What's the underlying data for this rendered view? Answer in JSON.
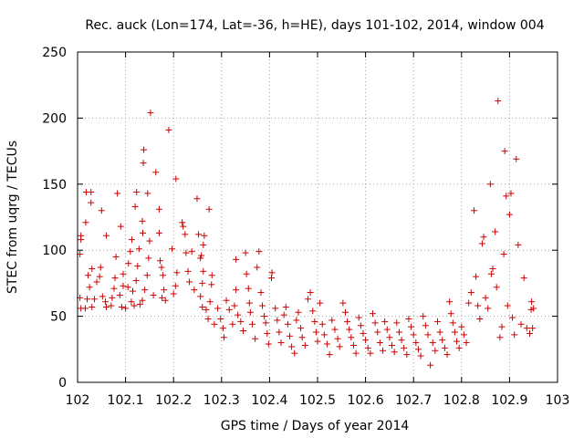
{
  "chart_data": {
    "type": "scatter",
    "title": "Rec. auck (Lon=174, Lat=-36, h=HE), days 101-102, 2014, window 004",
    "xlabel": "GPS time / Days of year 2014",
    "ylabel": "STEC from uqrg / TECUs",
    "xlim": [
      102,
      103
    ],
    "ylim": [
      0,
      250
    ],
    "x_ticks": [
      "102",
      "102.1",
      "102.2",
      "102.3",
      "102.4",
      "102.5",
      "102.6",
      "102.7",
      "102.8",
      "102.9",
      "103"
    ],
    "y_ticks": [
      "0",
      "50",
      "100",
      "150",
      "200",
      "250"
    ],
    "grid": true,
    "marker": "+",
    "color": "#cc0000",
    "points": [
      [
        102.007,
        56
      ],
      [
        102.005,
        64
      ],
      [
        102.005,
        97
      ],
      [
        102.007,
        108
      ],
      [
        102.007,
        111
      ],
      [
        102.017,
        121
      ],
      [
        102.018,
        144
      ],
      [
        102.028,
        144
      ],
      [
        102.028,
        136
      ],
      [
        102.03,
        86
      ],
      [
        102.022,
        81
      ],
      [
        102.025,
        72
      ],
      [
        102.02,
        63
      ],
      [
        102.016,
        56
      ],
      [
        102.03,
        57
      ],
      [
        102.035,
        63
      ],
      [
        102.04,
        76
      ],
      [
        102.046,
        80
      ],
      [
        102.048,
        87
      ],
      [
        102.05,
        130
      ],
      [
        102.06,
        111
      ],
      [
        102.052,
        65
      ],
      [
        102.058,
        61
      ],
      [
        102.06,
        57
      ],
      [
        102.07,
        58
      ],
      [
        102.072,
        64
      ],
      [
        102.076,
        71
      ],
      [
        102.078,
        79
      ],
      [
        102.08,
        95
      ],
      [
        102.083,
        143
      ],
      [
        102.09,
        118
      ],
      [
        102.095,
        82
      ],
      [
        102.095,
        73
      ],
      [
        102.088,
        66
      ],
      [
        102.092,
        57
      ],
      [
        102.1,
        56
      ],
      [
        102.105,
        72
      ],
      [
        102.106,
        90
      ],
      [
        102.11,
        99
      ],
      [
        102.113,
        108
      ],
      [
        102.12,
        133
      ],
      [
        102.123,
        144
      ],
      [
        102.128,
        101
      ],
      [
        102.125,
        88
      ],
      [
        102.122,
        77
      ],
      [
        102.115,
        69
      ],
      [
        102.112,
        61
      ],
      [
        102.118,
        58
      ],
      [
        102.135,
        122
      ],
      [
        102.136,
        113
      ],
      [
        102.137,
        166
      ],
      [
        102.138,
        176
      ],
      [
        102.146,
        143
      ],
      [
        102.152,
        204
      ],
      [
        102.15,
        107
      ],
      [
        102.148,
        94
      ],
      [
        102.145,
        81
      ],
      [
        102.14,
        70
      ],
      [
        102.135,
        62
      ],
      [
        102.13,
        59
      ],
      [
        102.158,
        66
      ],
      [
        102.163,
        159
      ],
      [
        102.17,
        131
      ],
      [
        102.17,
        113
      ],
      [
        102.172,
        92
      ],
      [
        102.175,
        87
      ],
      [
        102.178,
        81
      ],
      [
        102.18,
        70
      ],
      [
        102.176,
        64
      ],
      [
        102.183,
        62
      ],
      [
        102.19,
        191
      ],
      [
        102.197,
        101
      ],
      [
        102.205,
        154
      ],
      [
        102.207,
        83
      ],
      [
        102.204,
        73
      ],
      [
        102.2,
        67
      ],
      [
        102.218,
        121
      ],
      [
        102.22,
        118
      ],
      [
        102.224,
        112
      ],
      [
        102.226,
        98
      ],
      [
        102.23,
        84
      ],
      [
        102.233,
        76
      ],
      [
        102.238,
        99
      ],
      [
        102.243,
        70
      ],
      [
        102.249,
        139
      ],
      [
        102.252,
        112
      ],
      [
        102.256,
        94
      ],
      [
        102.258,
        96
      ],
      [
        102.262,
        104
      ],
      [
        102.264,
        111
      ],
      [
        102.262,
        84
      ],
      [
        102.26,
        75
      ],
      [
        102.256,
        65
      ],
      [
        102.26,
        57
      ],
      [
        102.268,
        55
      ],
      [
        102.274,
        131
      ],
      [
        102.28,
        81
      ],
      [
        102.279,
        74
      ],
      [
        102.276,
        61
      ],
      [
        102.272,
        48
      ],
      [
        102.285,
        44
      ],
      [
        102.292,
        56
      ],
      [
        102.298,
        48
      ],
      [
        102.303,
        41
      ],
      [
        102.305,
        34
      ],
      [
        102.31,
        62
      ],
      [
        102.316,
        55
      ],
      [
        102.323,
        44
      ],
      [
        102.33,
        93
      ],
      [
        102.33,
        70
      ],
      [
        102.327,
        58
      ],
      [
        102.334,
        51
      ],
      [
        102.34,
        46
      ],
      [
        102.345,
        39
      ],
      [
        102.35,
        98
      ],
      [
        102.352,
        82
      ],
      [
        102.356,
        71
      ],
      [
        102.358,
        60
      ],
      [
        102.36,
        53
      ],
      [
        102.364,
        44
      ],
      [
        102.37,
        33
      ],
      [
        102.374,
        87
      ],
      [
        102.378,
        99
      ],
      [
        102.382,
        68
      ],
      [
        102.385,
        58
      ],
      [
        102.389,
        50
      ],
      [
        102.392,
        45
      ],
      [
        102.395,
        37
      ],
      [
        102.398,
        29
      ],
      [
        102.404,
        79
      ],
      [
        102.405,
        83
      ],
      [
        102.412,
        56
      ],
      [
        102.416,
        47
      ],
      [
        102.42,
        38
      ],
      [
        102.424,
        30
      ],
      [
        102.43,
        51
      ],
      [
        102.434,
        57
      ],
      [
        102.438,
        44
      ],
      [
        102.442,
        35
      ],
      [
        102.446,
        27
      ],
      [
        102.452,
        22
      ],
      [
        102.456,
        47
      ],
      [
        102.46,
        53
      ],
      [
        102.465,
        41
      ],
      [
        102.468,
        34
      ],
      [
        102.474,
        28
      ],
      [
        102.48,
        63
      ],
      [
        102.485,
        68
      ],
      [
        102.49,
        54
      ],
      [
        102.494,
        46
      ],
      [
        102.497,
        38
      ],
      [
        102.5,
        31
      ],
      [
        102.505,
        60
      ],
      [
        102.51,
        44
      ],
      [
        102.514,
        36
      ],
      [
        102.52,
        29
      ],
      [
        102.525,
        21
      ],
      [
        102.53,
        47
      ],
      [
        102.536,
        40
      ],
      [
        102.542,
        33
      ],
      [
        102.546,
        27
      ],
      [
        102.553,
        60
      ],
      [
        102.558,
        53
      ],
      [
        102.562,
        46
      ],
      [
        102.566,
        40
      ],
      [
        102.57,
        34
      ],
      [
        102.575,
        28
      ],
      [
        102.58,
        22
      ],
      [
        102.586,
        49
      ],
      [
        102.59,
        43
      ],
      [
        102.595,
        37
      ],
      [
        102.6,
        32
      ],
      [
        102.605,
        26
      ],
      [
        102.61,
        22
      ],
      [
        102.615,
        52
      ],
      [
        102.62,
        45
      ],
      [
        102.625,
        38
      ],
      [
        102.63,
        30
      ],
      [
        102.636,
        24
      ],
      [
        102.64,
        46
      ],
      [
        102.645,
        40
      ],
      [
        102.65,
        34
      ],
      [
        102.655,
        28
      ],
      [
        102.66,
        23
      ],
      [
        102.665,
        45
      ],
      [
        102.67,
        38
      ],
      [
        102.675,
        32
      ],
      [
        102.68,
        26
      ],
      [
        102.686,
        21
      ],
      [
        102.69,
        48
      ],
      [
        102.695,
        42
      ],
      [
        102.7,
        36
      ],
      [
        102.705,
        30
      ],
      [
        102.71,
        25
      ],
      [
        102.715,
        20
      ],
      [
        102.72,
        50
      ],
      [
        102.725,
        43
      ],
      [
        102.73,
        36
      ],
      [
        102.735,
        13
      ],
      [
        102.74,
        30
      ],
      [
        102.745,
        24
      ],
      [
        102.75,
        46
      ],
      [
        102.755,
        38
      ],
      [
        102.76,
        32
      ],
      [
        102.765,
        26
      ],
      [
        102.77,
        21
      ],
      [
        102.775,
        61
      ],
      [
        102.778,
        52
      ],
      [
        102.782,
        45
      ],
      [
        102.786,
        38
      ],
      [
        102.79,
        31
      ],
      [
        102.795,
        26
      ],
      [
        102.8,
        42
      ],
      [
        102.805,
        36
      ],
      [
        102.81,
        30
      ],
      [
        102.815,
        60
      ],
      [
        102.82,
        68
      ],
      [
        102.826,
        130
      ],
      [
        102.83,
        80
      ],
      [
        102.834,
        58
      ],
      [
        102.838,
        48
      ],
      [
        102.843,
        105
      ],
      [
        102.846,
        110
      ],
      [
        102.85,
        64
      ],
      [
        102.855,
        56
      ],
      [
        102.86,
        150
      ],
      [
        102.862,
        82
      ],
      [
        102.865,
        86
      ],
      [
        102.87,
        114
      ],
      [
        102.873,
        72
      ],
      [
        102.876,
        213
      ],
      [
        102.88,
        34
      ],
      [
        102.884,
        42
      ],
      [
        102.888,
        97
      ],
      [
        102.89,
        175
      ],
      [
        102.893,
        141
      ],
      [
        102.896,
        58
      ],
      [
        102.9,
        127
      ],
      [
        102.903,
        143
      ],
      [
        102.906,
        49
      ],
      [
        102.91,
        36
      ],
      [
        102.914,
        169
      ],
      [
        102.918,
        104
      ],
      [
        102.924,
        44
      ],
      [
        102.93,
        79
      ],
      [
        102.936,
        41
      ],
      [
        102.942,
        37
      ],
      [
        102.945,
        55
      ],
      [
        102.946,
        61
      ],
      [
        102.948,
        41
      ],
      [
        102.95,
        56
      ]
    ]
  }
}
